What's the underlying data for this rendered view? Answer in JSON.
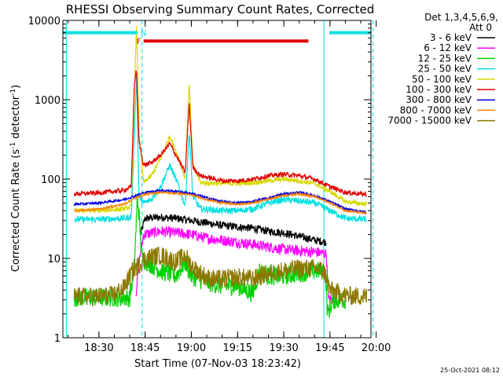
{
  "chart_data": {
    "type": "line",
    "title": "RHESSI Observing Summary Count Rates, Corrected",
    "xlabel": "Start Time (07-Nov-03 18:23:42)",
    "ylabel": "Corrected Count Rate (s⁻¹ detector⁻¹)",
    "ylabel_parts": {
      "main": "Corrected Count Rate (s",
      "sup1": "-1",
      "mid": " detector",
      "sup2": "-1",
      "end": ")"
    },
    "yscale": "log",
    "ylim": [
      1,
      10000
    ],
    "xlim_minutes": [
      18.3,
      118.3
    ],
    "x_ticks": [
      {
        "label": "18:30",
        "t": 30
      },
      {
        "label": "18:45",
        "t": 45
      },
      {
        "label": "19:00",
        "t": 60
      },
      {
        "label": "19:15",
        "t": 75
      },
      {
        "label": "19:30",
        "t": 90
      },
      {
        "label": "19:45",
        "t": 105
      },
      {
        "label": "20:00",
        "t": 120
      }
    ],
    "y_ticks": [
      {
        "label": "1",
        "v": 1
      },
      {
        "label": "10",
        "v": 10
      },
      {
        "label": "100",
        "v": 100
      },
      {
        "label": "1000",
        "v": 1000
      },
      {
        "label": "10000",
        "v": 10000
      }
    ],
    "legend_header": [
      "Det 1,3,4,5,6,9,",
      "Att 0"
    ],
    "legend_position": "right",
    "timestamp": "25-Oct-2021 08:12",
    "night_times": [
      18.3,
      19.4,
      44,
      103,
      119
    ],
    "saa_flags": {
      "label": "N",
      "color": "#00e0e0",
      "level": 7000,
      "segments": [
        [
          18.3,
          42.5
        ],
        [
          104.8,
          118.3
        ]
      ]
    },
    "flare_flag": {
      "label": "F",
      "color": "#e00000",
      "level": 5500,
      "segments": [
        [
          44.5,
          98
        ]
      ]
    },
    "series": [
      {
        "name": "3 - 6 keV",
        "color": "#000000",
        "points": [
          [
            43.5,
            20
          ],
          [
            45,
            32
          ],
          [
            50,
            33
          ],
          [
            55,
            32
          ],
          [
            60,
            30
          ],
          [
            65,
            28
          ],
          [
            70,
            26
          ],
          [
            75,
            25
          ],
          [
            80,
            24
          ],
          [
            85,
            22
          ],
          [
            90,
            21
          ],
          [
            95,
            19
          ],
          [
            100,
            17
          ],
          [
            103.8,
            16
          ]
        ]
      },
      {
        "name": "6 - 12 keV",
        "color": "#ff00ff",
        "points": [
          [
            42,
            3.5
          ],
          [
            43,
            9
          ],
          [
            44.5,
            20
          ],
          [
            50,
            22
          ],
          [
            55,
            21
          ],
          [
            60,
            20
          ],
          [
            65,
            18
          ],
          [
            70,
            17
          ],
          [
            75,
            16
          ],
          [
            80,
            15
          ],
          [
            85,
            14
          ],
          [
            90,
            13
          ],
          [
            95,
            12.5
          ],
          [
            100,
            12
          ],
          [
            103.8,
            11.5
          ],
          [
            104.5,
            3
          ],
          [
            107,
            3
          ]
        ]
      },
      {
        "name": "12 - 25 keV",
        "color": "#00d000",
        "points": [
          [
            22,
            3.2
          ],
          [
            40,
            3.2
          ],
          [
            41.5,
            8
          ],
          [
            42.5,
            60
          ],
          [
            43.3,
            25
          ],
          [
            44,
            10
          ],
          [
            50,
            7
          ],
          [
            55,
            6
          ],
          [
            58,
            9
          ],
          [
            60,
            6
          ],
          [
            65,
            5
          ],
          [
            70,
            4.5
          ],
          [
            75,
            4.5
          ],
          [
            80,
            3.6
          ],
          [
            82,
            7
          ],
          [
            85,
            6
          ],
          [
            90,
            6
          ],
          [
            95,
            6.5
          ],
          [
            100,
            7
          ],
          [
            103.5,
            7
          ],
          [
            104.2,
            2
          ],
          [
            106,
            3
          ],
          [
            110,
            3
          ]
        ]
      },
      {
        "name": "25 - 50 keV",
        "color": "#00e0e0",
        "points": [
          [
            22,
            31
          ],
          [
            30,
            31
          ],
          [
            38,
            32
          ],
          [
            40.5,
            33
          ],
          [
            41.7,
            600
          ],
          [
            42.2,
            2200
          ],
          [
            43,
            60
          ],
          [
            44.5,
            50
          ],
          [
            47,
            55
          ],
          [
            50,
            80
          ],
          [
            53,
            150
          ],
          [
            56,
            80
          ],
          [
            58,
            45
          ],
          [
            59.3,
            400
          ],
          [
            60.5,
            60
          ],
          [
            63,
            42
          ],
          [
            70,
            40
          ],
          [
            75,
            40
          ],
          [
            80,
            42
          ],
          [
            85,
            50
          ],
          [
            90,
            55
          ],
          [
            95,
            53
          ],
          [
            100,
            50
          ],
          [
            105,
            40
          ],
          [
            110,
            32
          ],
          [
            117,
            31
          ]
        ]
      },
      {
        "name": "50 - 100 keV",
        "color": "#d8d800",
        "points": [
          [
            22,
            40
          ],
          [
            30,
            40
          ],
          [
            38,
            42
          ],
          [
            40.5,
            45
          ],
          [
            41.5,
            1200
          ],
          [
            42.2,
            9000
          ],
          [
            43,
            400
          ],
          [
            44.5,
            90
          ],
          [
            47,
            110
          ],
          [
            50,
            180
          ],
          [
            53,
            350
          ],
          [
            56,
            180
          ],
          [
            58,
            100
          ],
          [
            59.3,
            1700
          ],
          [
            60.5,
            150
          ],
          [
            63,
            90
          ],
          [
            70,
            88
          ],
          [
            75,
            88
          ],
          [
            80,
            90
          ],
          [
            85,
            95
          ],
          [
            90,
            100
          ],
          [
            95,
            95
          ],
          [
            100,
            88
          ],
          [
            105,
            70
          ],
          [
            110,
            52
          ],
          [
            117,
            48
          ]
        ]
      },
      {
        "name": "100 - 300 keV",
        "color": "#e00000",
        "points": [
          [
            22,
            65
          ],
          [
            30,
            67
          ],
          [
            38,
            72
          ],
          [
            40.5,
            80
          ],
          [
            41.5,
            1600
          ],
          [
            42.2,
            2400
          ],
          [
            43,
            300
          ],
          [
            44.5,
            150
          ],
          [
            47,
            160
          ],
          [
            50,
            200
          ],
          [
            53,
            280
          ],
          [
            56,
            170
          ],
          [
            58,
            120
          ],
          [
            59.3,
            900
          ],
          [
            60.5,
            140
          ],
          [
            63,
            110
          ],
          [
            70,
            95
          ],
          [
            75,
            95
          ],
          [
            80,
            100
          ],
          [
            85,
            110
          ],
          [
            90,
            115
          ],
          [
            95,
            110
          ],
          [
            100,
            100
          ],
          [
            105,
            80
          ],
          [
            110,
            68
          ],
          [
            117,
            64
          ]
        ]
      },
      {
        "name": "300 - 800 keV",
        "color": "#0000e0",
        "points": [
          [
            22,
            48
          ],
          [
            30,
            50
          ],
          [
            38,
            55
          ],
          [
            42,
            62
          ],
          [
            45,
            68
          ],
          [
            50,
            72
          ],
          [
            55,
            70
          ],
          [
            60,
            66
          ],
          [
            65,
            58
          ],
          [
            70,
            52
          ],
          [
            75,
            50
          ],
          [
            80,
            52
          ],
          [
            85,
            58
          ],
          [
            90,
            65
          ],
          [
            95,
            68
          ],
          [
            100,
            62
          ],
          [
            105,
            52
          ],
          [
            110,
            42
          ],
          [
            117,
            38
          ]
        ]
      },
      {
        "name": "800 - 7000 keV",
        "color": "#ff8000",
        "points": [
          [
            22,
            40
          ],
          [
            30,
            42
          ],
          [
            38,
            48
          ],
          [
            42,
            58
          ],
          [
            45,
            64
          ],
          [
            50,
            68
          ],
          [
            55,
            66
          ],
          [
            60,
            63
          ],
          [
            65,
            55
          ],
          [
            70,
            50
          ],
          [
            75,
            48
          ],
          [
            80,
            50
          ],
          [
            85,
            56
          ],
          [
            90,
            62
          ],
          [
            95,
            65
          ],
          [
            100,
            60
          ],
          [
            105,
            50
          ],
          [
            110,
            40
          ],
          [
            117,
            37
          ]
        ]
      },
      {
        "name": "7000 - 15000 keV",
        "color": "#8c7800",
        "points": [
          [
            22,
            3.3
          ],
          [
            28,
            3.3
          ],
          [
            34,
            3.4
          ],
          [
            38,
            4.2
          ],
          [
            41,
            7
          ],
          [
            45,
            10
          ],
          [
            50,
            11
          ],
          [
            55,
            9
          ],
          [
            58,
            11
          ],
          [
            60,
            8
          ],
          [
            63,
            6.5
          ],
          [
            66,
            5.5
          ],
          [
            70,
            5.5
          ],
          [
            75,
            5.8
          ],
          [
            80,
            5.5
          ],
          [
            85,
            6.5
          ],
          [
            90,
            7
          ],
          [
            95,
            7.5
          ],
          [
            100,
            7.5
          ],
          [
            103,
            7
          ],
          [
            105,
            4
          ],
          [
            110,
            3.4
          ],
          [
            117,
            3.3
          ]
        ]
      }
    ]
  }
}
